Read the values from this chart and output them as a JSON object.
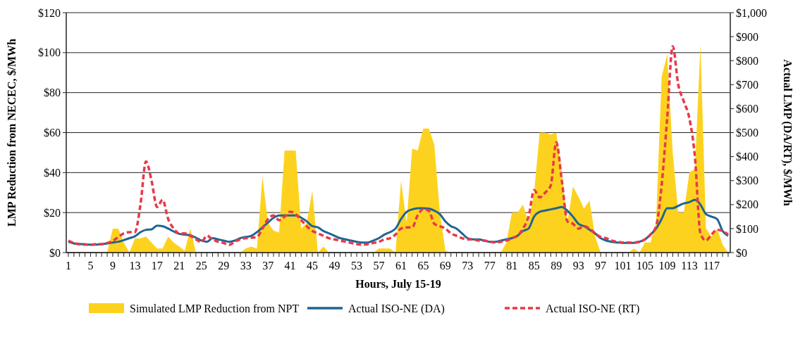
{
  "chart_data": {
    "type": "area",
    "xlabel": "Hours, July 15-19",
    "ylabel": "LMP Reduction from NECEC, $/MWh",
    "y2label": "Actual LMP (DA/RT), $/MWh",
    "categories": [
      "1",
      null,
      null,
      null,
      "5",
      null,
      null,
      null,
      "9",
      null,
      null,
      null,
      "13",
      null,
      null,
      null,
      "17",
      null,
      null,
      null,
      "21",
      null,
      null,
      null,
      "25",
      null,
      null,
      null,
      "29",
      null,
      null,
      null,
      "33",
      null,
      null,
      null,
      "37",
      null,
      null,
      null,
      "41",
      null,
      null,
      null,
      "45",
      null,
      null,
      null,
      "49",
      null,
      null,
      null,
      "53",
      null,
      null,
      null,
      "57",
      null,
      null,
      null,
      "61",
      null,
      null,
      null,
      "65",
      null,
      null,
      null,
      "69",
      null,
      null,
      null,
      "73",
      null,
      null,
      null,
      "77",
      null,
      null,
      null,
      "81",
      null,
      null,
      null,
      "85",
      null,
      null,
      null,
      "89",
      null,
      null,
      null,
      "93",
      null,
      null,
      null,
      "97",
      null,
      null,
      null,
      "101",
      null,
      null,
      null,
      "105",
      null,
      null,
      null,
      "109",
      null,
      null,
      null,
      "113",
      null,
      null,
      null,
      "117",
      null,
      null,
      null
    ],
    "ylim": [
      0,
      120
    ],
    "yticks": [
      {
        "value": 0,
        "label": "$0"
      },
      {
        "value": 20,
        "label": "$20"
      },
      {
        "value": 40,
        "label": "$40"
      },
      {
        "value": 60,
        "label": "$60"
      },
      {
        "value": 80,
        "label": "$80"
      },
      {
        "value": 100,
        "label": "$100"
      },
      {
        "value": 120,
        "label": "$120"
      }
    ],
    "y2lim": [
      0,
      1000
    ],
    "y2ticks": [
      {
        "value": 0,
        "label": "$0"
      },
      {
        "value": 100,
        "label": "$100"
      },
      {
        "value": 200,
        "label": "$200"
      },
      {
        "value": 300,
        "label": "$300"
      },
      {
        "value": 400,
        "label": "$400"
      },
      {
        "value": 500,
        "label": "$500"
      },
      {
        "value": 600,
        "label": "$600"
      },
      {
        "value": 700,
        "label": "$700"
      },
      {
        "value": 800,
        "label": "$800"
      },
      {
        "value": 900,
        "label": "$900"
      },
      {
        "value": 1000,
        "label": "$1,000"
      }
    ],
    "grid": "y",
    "legend": "bottom",
    "series": [
      {
        "name": "Simulated LMP Reduction from NPT",
        "color": "#fdd21f",
        "values": [
          0,
          0,
          0,
          0,
          0,
          0,
          0,
          0,
          12,
          12,
          5,
          0,
          7,
          7,
          8,
          5,
          2,
          2,
          8,
          5,
          3,
          1,
          12,
          0,
          0,
          0,
          0,
          0,
          0,
          0,
          0,
          0,
          2,
          3,
          2,
          38,
          15,
          11,
          10,
          51,
          51,
          51,
          12,
          15,
          31,
          0,
          3,
          0,
          0,
          0,
          0,
          0,
          0,
          0,
          0,
          0,
          2,
          2,
          2,
          0,
          36,
          15,
          52,
          51,
          62,
          62,
          54,
          20,
          1,
          0,
          0,
          0,
          0,
          0,
          0,
          0,
          0,
          0,
          0,
          5,
          20,
          20,
          24,
          15,
          30,
          60,
          60,
          59,
          60,
          40,
          15,
          33,
          28,
          22,
          26,
          8,
          0,
          0,
          0,
          0,
          0,
          0,
          2,
          0,
          5,
          5,
          15,
          88,
          99,
          50,
          20,
          20,
          40,
          42,
          104,
          12,
          8,
          12,
          4,
          0
        ]
      },
      {
        "name": "Actual ISO-NE (DA)",
        "type": "line",
        "axis": "y2",
        "color": "#1f6591",
        "line_style": "solid",
        "values": [
          45,
          38,
          35,
          35,
          33,
          33,
          35,
          38,
          42,
          45,
          52,
          60,
          68,
          85,
          95,
          97,
          112,
          110,
          100,
          88,
          78,
          75,
          72,
          62,
          50,
          45,
          60,
          55,
          50,
          45,
          50,
          60,
          65,
          70,
          85,
          105,
          125,
          145,
          155,
          155,
          155,
          155,
          145,
          130,
          110,
          105,
          90,
          80,
          70,
          60,
          55,
          50,
          45,
          42,
          42,
          50,
          60,
          75,
          85,
          100,
          140,
          170,
          180,
          185,
          185,
          183,
          175,
          160,
          130,
          110,
          100,
          80,
          60,
          55,
          55,
          50,
          45,
          45,
          50,
          55,
          60,
          70,
          90,
          100,
          150,
          170,
          175,
          180,
          185,
          190,
          175,
          150,
          120,
          110,
          95,
          80,
          60,
          50,
          45,
          42,
          40,
          40,
          40,
          45,
          55,
          75,
          100,
          140,
          185,
          185,
          195,
          205,
          210,
          220,
          200,
          160,
          150,
          140,
          90,
          70
        ]
      },
      {
        "name": "Actual ISO-NE (RT)",
        "type": "line",
        "axis": "y2",
        "color": "#e8394a",
        "line_style": "dashed",
        "values": [
          50,
          40,
          35,
          33,
          33,
          35,
          35,
          40,
          48,
          65,
          80,
          85,
          85,
          200,
          380,
          300,
          190,
          220,
          140,
          100,
          80,
          80,
          70,
          55,
          45,
          70,
          55,
          45,
          40,
          32,
          45,
          55,
          60,
          62,
          65,
          100,
          140,
          155,
          135,
          150,
          170,
          160,
          135,
          110,
          90,
          80,
          70,
          60,
          55,
          50,
          45,
          40,
          35,
          33,
          35,
          40,
          45,
          55,
          60,
          75,
          100,
          105,
          105,
          155,
          180,
          175,
          120,
          110,
          100,
          80,
          70,
          60,
          55,
          55,
          50,
          50,
          45,
          42,
          45,
          50,
          60,
          70,
          100,
          150,
          260,
          230,
          250,
          280,
          460,
          300,
          130,
          120,
          100,
          110,
          100,
          80,
          65,
          60,
          50,
          45,
          42,
          42,
          42,
          45,
          55,
          75,
          110,
          280,
          560,
          860,
          700,
          630,
          560,
          400,
          80,
          50,
          75,
          95,
          90,
          75
        ]
      }
    ]
  }
}
